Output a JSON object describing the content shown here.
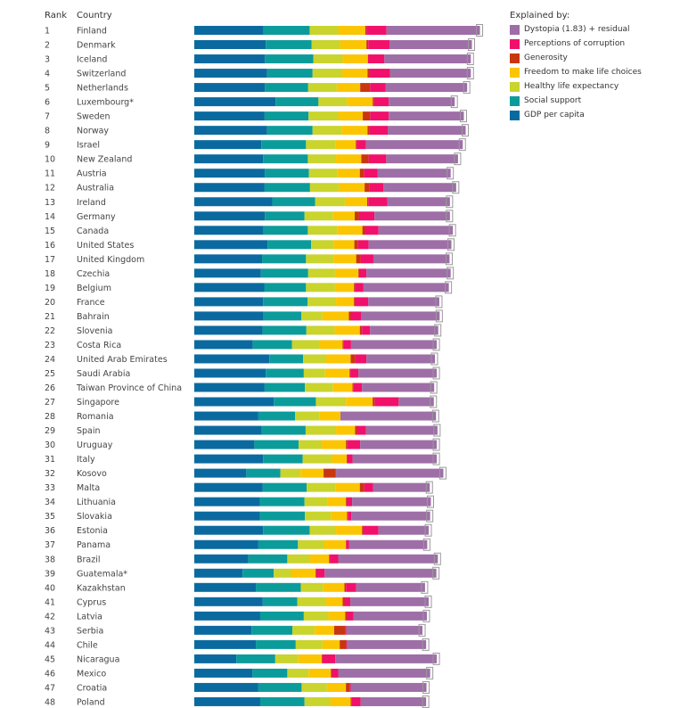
{
  "header": {
    "rank_label": "Rank",
    "country_label": "Country"
  },
  "legend": {
    "title": "Explained by:",
    "items": [
      {
        "label": "Dystopia (1.83) + residual",
        "color": "#9e6ea7"
      },
      {
        "label": "Perceptions of corruption",
        "color": "#f1106a"
      },
      {
        "label": "Generosity",
        "color": "#c8360f"
      },
      {
        "label": "Freedom to make life choices",
        "color": "#fcc502"
      },
      {
        "label": "Healthy life expectancy",
        "color": "#c9d42d"
      },
      {
        "label": "Social support",
        "color": "#0c9b9b"
      },
      {
        "label": "GDP per capita",
        "color": "#0a6aa0"
      }
    ]
  },
  "chart_data": {
    "type": "bar",
    "stacked": true,
    "orientation": "horizontal",
    "component_order": [
      "gdp",
      "social",
      "health",
      "freedom",
      "generosity",
      "corruption",
      "dystopia"
    ],
    "component_colors": {
      "gdp": "#0a6aa0",
      "social": "#0c9b9b",
      "health": "#c9d42d",
      "freedom": "#fcc502",
      "generosity": "#c8360f",
      "corruption": "#f1106a",
      "dystopia": "#9e6ea7"
    },
    "xlim": [
      0,
      8.2
    ],
    "rows": [
      {
        "rank": "1",
        "country": "Finland",
        "gdp": 1.89,
        "social": 1.26,
        "health": 0.78,
        "freedom": 0.74,
        "generosity": 0.03,
        "corruption": 0.55,
        "dystopia": 2.55
      },
      {
        "rank": "2",
        "country": "Denmark",
        "gdp": 1.95,
        "social": 1.25,
        "health": 0.78,
        "freedom": 0.72,
        "generosity": 0.05,
        "corruption": 0.58,
        "dystopia": 2.25
      },
      {
        "rank": "3",
        "country": "Iceland",
        "gdp": 1.93,
        "social": 1.32,
        "health": 0.8,
        "freedom": 0.69,
        "generosity": 0.0,
        "corruption": 0.45,
        "dystopia": 2.36
      },
      {
        "rank": "4",
        "country": "Switzerland",
        "gdp": 1.99,
        "social": 1.24,
        "health": 0.81,
        "freedom": 0.69,
        "generosity": 0.05,
        "corruption": 0.56,
        "dystopia": 2.21
      },
      {
        "rank": "5",
        "country": "Netherlands",
        "gdp": 1.93,
        "social": 1.18,
        "health": 0.78,
        "freedom": 0.64,
        "generosity": 0.27,
        "corruption": 0.42,
        "dystopia": 2.23
      },
      {
        "rank": "6",
        "country": "Luxembourg*",
        "gdp": 2.22,
        "social": 1.17,
        "health": 0.78,
        "freedom": 0.7,
        "generosity": 0.04,
        "corruption": 0.4,
        "dystopia": 1.8
      },
      {
        "rank": "7",
        "country": "Sweden",
        "gdp": 1.92,
        "social": 1.2,
        "health": 0.81,
        "freedom": 0.67,
        "generosity": 0.2,
        "corruption": 0.51,
        "dystopia": 2.05
      },
      {
        "rank": "8",
        "country": "Norway",
        "gdp": 1.99,
        "social": 1.24,
        "health": 0.79,
        "freedom": 0.71,
        "generosity": 0.06,
        "corruption": 0.49,
        "dystopia": 2.13
      },
      {
        "rank": "9",
        "country": "Israel",
        "gdp": 1.83,
        "social": 1.22,
        "health": 0.81,
        "freedom": 0.55,
        "generosity": 0.02,
        "corruption": 0.26,
        "dystopia": 2.64
      },
      {
        "rank": "10",
        "country": "New Zealand",
        "gdp": 1.88,
        "social": 1.22,
        "health": 0.77,
        "freedom": 0.69,
        "generosity": 0.2,
        "corruption": 0.48,
        "dystopia": 1.96
      },
      {
        "rank": "11",
        "country": "Austria",
        "gdp": 1.93,
        "social": 1.2,
        "health": 0.78,
        "freedom": 0.61,
        "generosity": 0.11,
        "corruption": 0.37,
        "dystopia": 2.0
      },
      {
        "rank": "12",
        "country": "Australia",
        "gdp": 1.92,
        "social": 1.24,
        "health": 0.78,
        "freedom": 0.71,
        "generosity": 0.14,
        "corruption": 0.37,
        "dystopia": 1.99
      },
      {
        "rank": "13",
        "country": "Ireland",
        "gdp": 2.13,
        "social": 1.17,
        "health": 0.81,
        "freedom": 0.61,
        "generosity": 0.03,
        "corruption": 0.52,
        "dystopia": 1.71
      },
      {
        "rank": "14",
        "country": "Germany",
        "gdp": 1.93,
        "social": 1.08,
        "health": 0.78,
        "freedom": 0.59,
        "generosity": 0.12,
        "corruption": 0.42,
        "dystopia": 2.06
      },
      {
        "rank": "15",
        "country": "Canada",
        "gdp": 1.89,
        "social": 1.21,
        "health": 0.8,
        "freedom": 0.69,
        "generosity": 0.07,
        "corruption": 0.37,
        "dystopia": 2.03
      },
      {
        "rank": "16",
        "country": "United States",
        "gdp": 2.0,
        "social": 1.19,
        "health": 0.61,
        "freedom": 0.57,
        "generosity": 0.1,
        "corruption": 0.29,
        "dystopia": 2.26
      },
      {
        "rank": "17",
        "country": "United Kingdom",
        "gdp": 1.85,
        "social": 1.2,
        "health": 0.75,
        "freedom": 0.62,
        "generosity": 0.12,
        "corruption": 0.35,
        "dystopia": 2.08
      },
      {
        "rank": "18",
        "country": "Czechia",
        "gdp": 1.82,
        "social": 1.29,
        "health": 0.73,
        "freedom": 0.64,
        "generosity": 0.02,
        "corruption": 0.2,
        "dystopia": 2.3
      },
      {
        "rank": "19",
        "country": "Belgium",
        "gdp": 1.91,
        "social": 1.14,
        "health": 0.79,
        "freedom": 0.52,
        "generosity": 0.03,
        "corruption": 0.23,
        "dystopia": 2.33
      },
      {
        "rank": "20",
        "country": "France",
        "gdp": 1.88,
        "social": 1.21,
        "health": 0.78,
        "freedom": 0.49,
        "generosity": 0.02,
        "corruption": 0.37,
        "dystopia": 1.94
      },
      {
        "rank": "21",
        "country": "Bahrain",
        "gdp": 1.89,
        "social": 1.03,
        "health": 0.58,
        "freedom": 0.72,
        "generosity": 0.05,
        "corruption": 0.28,
        "dystopia": 2.15
      },
      {
        "rank": "22",
        "country": "Slovenia",
        "gdp": 1.86,
        "social": 1.2,
        "health": 0.77,
        "freedom": 0.69,
        "generosity": 0.06,
        "corruption": 0.22,
        "dystopia": 1.86
      },
      {
        "rank": "23",
        "country": "Costa Rica",
        "gdp": 1.6,
        "social": 1.07,
        "health": 0.75,
        "freedom": 0.63,
        "generosity": 0.02,
        "corruption": 0.21,
        "dystopia": 2.34
      },
      {
        "rank": "24",
        "country": "United Arab Emirates",
        "gdp": 2.05,
        "social": 0.92,
        "health": 0.62,
        "freedom": 0.68,
        "generosity": 0.13,
        "corruption": 0.3,
        "dystopia": 1.87
      },
      {
        "rank": "25",
        "country": "Saudi Arabia",
        "gdp": 1.95,
        "social": 1.04,
        "health": 0.58,
        "freedom": 0.67,
        "generosity": 0.02,
        "corruption": 0.22,
        "dystopia": 2.14
      },
      {
        "rank": "26",
        "country": "Taiwan Province of China",
        "gdp": 1.92,
        "social": 1.1,
        "health": 0.77,
        "freedom": 0.53,
        "generosity": 0.03,
        "corruption": 0.23,
        "dystopia": 1.97
      },
      {
        "rank": "27",
        "country": "Singapore",
        "gdp": 2.17,
        "social": 1.15,
        "health": 0.82,
        "freedom": 0.73,
        "generosity": 0.05,
        "corruption": 0.66,
        "dystopia": 0.96
      },
      {
        "rank": "28",
        "country": "Romania",
        "gdp": 1.75,
        "social": 1.0,
        "health": 0.66,
        "freedom": 0.58,
        "generosity": 0.0,
        "corruption": 0.0,
        "dystopia": 2.61
      },
      {
        "rank": "29",
        "country": "Spain",
        "gdp": 1.84,
        "social": 1.2,
        "health": 0.83,
        "freedom": 0.52,
        "generosity": 0.05,
        "corruption": 0.25,
        "dystopia": 1.95
      },
      {
        "rank": "30",
        "country": "Uruguay",
        "gdp": 1.64,
        "social": 1.21,
        "health": 0.63,
        "freedom": 0.66,
        "generosity": 0.04,
        "corruption": 0.35,
        "dystopia": 2.09
      },
      {
        "rank": "31",
        "country": "Italy",
        "gdp": 1.88,
        "social": 1.08,
        "health": 0.8,
        "freedom": 0.4,
        "generosity": 0.02,
        "corruption": 0.14,
        "dystopia": 2.3
      },
      {
        "rank": "32",
        "country": "Kosovo",
        "gdp": 1.42,
        "social": 0.93,
        "health": 0.55,
        "freedom": 0.63,
        "generosity": 0.32,
        "corruption": 0.02,
        "dystopia": 2.93
      },
      {
        "rank": "33",
        "country": "Malta",
        "gdp": 1.87,
        "social": 1.2,
        "health": 0.78,
        "freedom": 0.67,
        "generosity": 0.12,
        "corruption": 0.24,
        "dystopia": 1.55
      },
      {
        "rank": "34",
        "country": "Lithuania",
        "gdp": 1.79,
        "social": 1.22,
        "health": 0.63,
        "freedom": 0.5,
        "generosity": 0.02,
        "corruption": 0.15,
        "dystopia": 2.15
      },
      {
        "rank": "35",
        "country": "Slovakia",
        "gdp": 1.79,
        "social": 1.23,
        "health": 0.71,
        "freedom": 0.44,
        "generosity": 0.02,
        "corruption": 0.1,
        "dystopia": 2.15
      },
      {
        "rank": "36",
        "country": "Estonia",
        "gdp": 1.88,
        "social": 1.27,
        "health": 0.72,
        "freedom": 0.71,
        "generosity": 0.03,
        "corruption": 0.42,
        "dystopia": 1.37
      },
      {
        "rank": "37",
        "country": "Panama",
        "gdp": 1.75,
        "social": 1.08,
        "health": 0.71,
        "freedom": 0.6,
        "generosity": 0.01,
        "corruption": 0.08,
        "dystopia": 2.13
      },
      {
        "rank": "38",
        "country": "Brazil",
        "gdp": 1.47,
        "social": 1.07,
        "health": 0.61,
        "freedom": 0.53,
        "generosity": 0.02,
        "corruption": 0.23,
        "dystopia": 2.72
      },
      {
        "rank": "39",
        "country": "Guatemala*",
        "gdp": 1.32,
        "social": 0.85,
        "health": 0.47,
        "freedom": 0.67,
        "generosity": 0.02,
        "corruption": 0.23,
        "dystopia": 3.05
      },
      {
        "rank": "40",
        "country": "Kazakhstan",
        "gdp": 1.68,
        "social": 1.23,
        "health": 0.61,
        "freedom": 0.58,
        "generosity": 0.04,
        "corruption": 0.28,
        "dystopia": 1.88
      },
      {
        "rank": "41",
        "country": "Cyprus",
        "gdp": 1.87,
        "social": 0.94,
        "health": 0.79,
        "freedom": 0.45,
        "generosity": 0.05,
        "corruption": 0.16,
        "dystopia": 2.14
      },
      {
        "rank": "42",
        "country": "Latvia",
        "gdp": 1.8,
        "social": 1.19,
        "health": 0.67,
        "freedom": 0.46,
        "generosity": 0.04,
        "corruption": 0.19,
        "dystopia": 2.0
      },
      {
        "rank": "43",
        "country": "Serbia",
        "gdp": 1.56,
        "social": 1.12,
        "health": 0.61,
        "freedom": 0.53,
        "generosity": 0.3,
        "corruption": 0.03,
        "dystopia": 2.08
      },
      {
        "rank": "44",
        "country": "Chile",
        "gdp": 1.68,
        "social": 1.09,
        "health": 0.73,
        "freedom": 0.47,
        "generosity": 0.18,
        "corruption": 0.02,
        "dystopia": 2.16
      },
      {
        "rank": "45",
        "country": "Nicaragua",
        "gdp": 1.15,
        "social": 1.06,
        "health": 0.63,
        "freedom": 0.64,
        "generosity": 0.02,
        "corruption": 0.35,
        "dystopia": 2.77
      },
      {
        "rank": "46",
        "country": "Mexico",
        "gdp": 1.59,
        "social": 0.95,
        "health": 0.58,
        "freedom": 0.61,
        "generosity": 0.03,
        "corruption": 0.17,
        "dystopia": 2.51
      },
      {
        "rank": "47",
        "country": "Croatia",
        "gdp": 1.75,
        "social": 1.18,
        "health": 0.69,
        "freedom": 0.52,
        "generosity": 0.1,
        "corruption": 0.03,
        "dystopia": 2.07
      },
      {
        "rank": "48",
        "country": "Poland",
        "gdp": 1.8,
        "social": 1.21,
        "health": 0.7,
        "freedom": 0.56,
        "generosity": 0.02,
        "corruption": 0.25,
        "dystopia": 1.79
      }
    ]
  }
}
